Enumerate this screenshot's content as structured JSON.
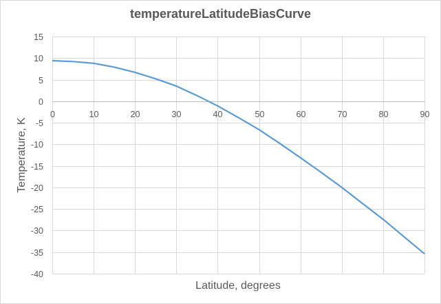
{
  "chart_data": {
    "type": "line",
    "title": "temperatureLatitudeBiasCurve",
    "xlabel": "Latitude, degrees",
    "ylabel": "Temperature, K",
    "xlim": [
      0,
      90
    ],
    "ylim": [
      -40,
      15
    ],
    "x_ticks": [
      0,
      10,
      20,
      30,
      40,
      50,
      60,
      70,
      80,
      90
    ],
    "y_ticks": [
      15,
      10,
      5,
      0,
      -5,
      -10,
      -15,
      -20,
      -25,
      -30,
      -35,
      -40
    ],
    "grid": true,
    "legend": null,
    "series": [
      {
        "name": "temperatureLatitudeBiasCurve",
        "color": "#5b9bd5",
        "x": [
          0,
          5,
          10,
          15,
          20,
          25,
          30,
          35,
          40,
          45,
          50,
          55,
          60,
          65,
          70,
          75,
          80,
          85,
          90
        ],
        "y": [
          9.4,
          9.2,
          8.8,
          7.9,
          6.7,
          5.2,
          3.5,
          1.3,
          -1.1,
          -3.8,
          -6.6,
          -9.8,
          -13.1,
          -16.5,
          -20.0,
          -23.7,
          -27.4,
          -31.4,
          -35.4
        ]
      }
    ]
  },
  "colors": {
    "line": "#5b9bd5",
    "grid": "#d9d9d9",
    "text": "#595959"
  }
}
